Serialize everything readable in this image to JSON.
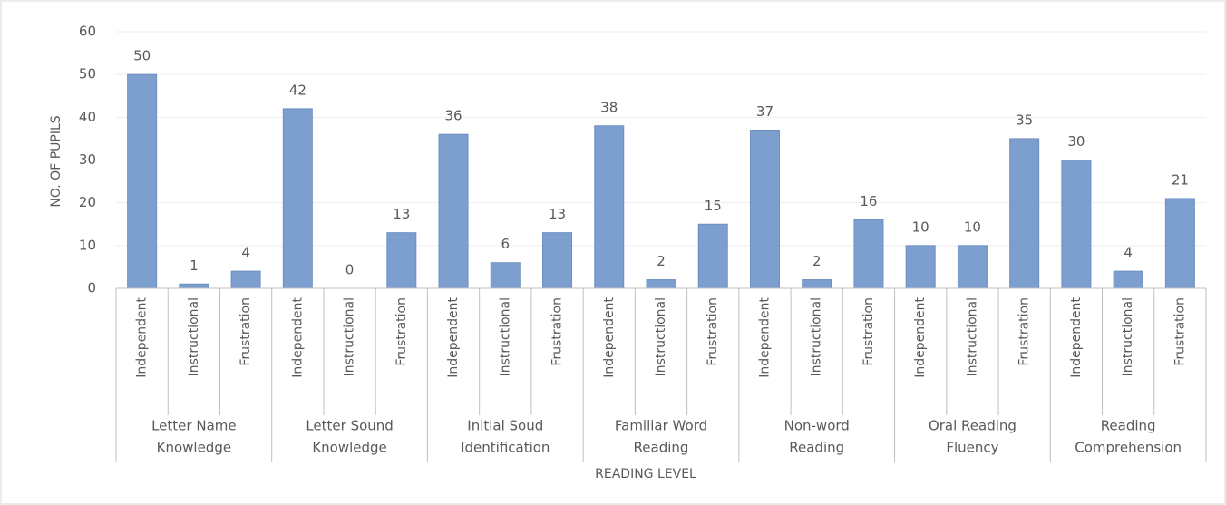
{
  "chart_data": {
    "type": "bar",
    "y_axis_label": "NO. OF PUPILS",
    "x_axis_label": "READING LEVEL",
    "color": "#7d9fcf",
    "ylim": [
      0,
      60
    ],
    "yticks": [
      0,
      10,
      20,
      30,
      40,
      50,
      60
    ],
    "grid": true,
    "groups": [
      {
        "label": [
          "Letter Name",
          "Knowledge"
        ],
        "categories": [
          "Independent",
          "Instructional",
          "Frustration"
        ],
        "values": [
          50,
          1,
          4
        ]
      },
      {
        "label": [
          "Letter Sound",
          "Knowledge"
        ],
        "categories": [
          "Independent",
          "Instructional",
          "Frustration"
        ],
        "values": [
          42,
          0,
          13
        ]
      },
      {
        "label": [
          "Initial Soud",
          "Identification"
        ],
        "categories": [
          "Independent",
          "Instructional",
          "Frustration"
        ],
        "values": [
          36,
          6,
          13
        ]
      },
      {
        "label": [
          "Familiar Word",
          "Reading"
        ],
        "categories": [
          "Independent",
          "Instructional",
          "Frustration"
        ],
        "values": [
          38,
          2,
          15
        ]
      },
      {
        "label": [
          "Non-word",
          "Reading"
        ],
        "categories": [
          "Independent",
          "Instructional",
          "Frustration"
        ],
        "values": [
          37,
          2,
          16
        ]
      },
      {
        "label": [
          "Oral Reading",
          "Fluency"
        ],
        "categories": [
          "Independent",
          "Instructional",
          "Frustration"
        ],
        "values": [
          10,
          10,
          35
        ]
      },
      {
        "label": [
          "Reading",
          "Comprehension"
        ],
        "categories": [
          "Independent",
          "Instructional",
          "Frustration"
        ],
        "values": [
          30,
          4,
          21
        ]
      }
    ]
  }
}
